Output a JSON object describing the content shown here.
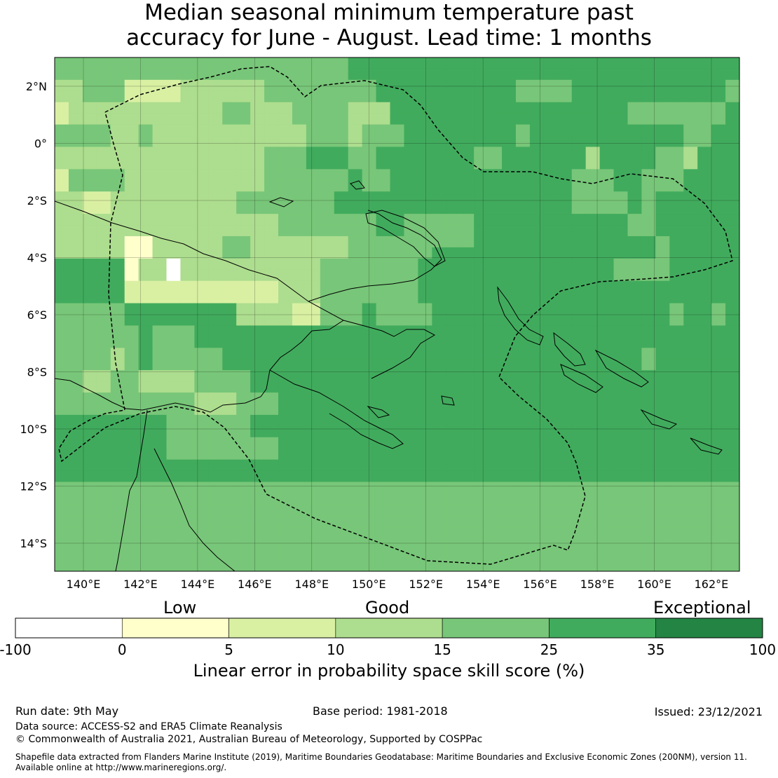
{
  "title": {
    "line1": "Median seasonal minimum temperature past",
    "line2": "accuracy for June - August. Lead time: 1 months"
  },
  "map": {
    "lon_ticks": [
      "140°E",
      "142°E",
      "144°E",
      "146°E",
      "148°E",
      "150°E",
      "152°E",
      "154°E",
      "156°E",
      "158°E",
      "160°E",
      "162°E"
    ],
    "lat_ticks": [
      "2°N",
      "0°",
      "2°S",
      "4°S",
      "6°S",
      "8°S",
      "10°S",
      "12°S",
      "14°S"
    ],
    "grid_rows": [
      "4444444444444444444445555555555555555555555555555",
      "4444444444444444444445555555555555555555555555555",
      "3344422223333334444444455555555554444555555555554",
      "3344422223333334444444455555555554444555555555554",
      "2333333333334433344443335555555555555555544444445",
      "2333333333334433344443335555555555555555544444445",
      "4444334333333333334443444555555554555555555554455",
      "4444334333333333334443444555555554555555555554455",
      "3333333333333334445554455555554455555535555443555",
      "3333333333333334445554455555554455555535555443555",
      "2444433333333334444445445555555555555444554445555",
      "2444433333333334444445445555555555555444554445555",
      "3322333333333444444455555555555555555444454555555",
      "3322333333333444444455555555555555555444454555555",
      "3333333333333333444444455444445555555555544555555",
      "3333333333333333444444455444445555555555544555555",
      "3333311333334433333334444444445555555555555455555",
      "3333311333334433333334444445555555555555555455555",
      "5555513303333333333444444455555555555555444455555",
      "5555513303333333333444444455555555555555444455555",
      "5555522222222222333444444455555555555555555555555",
      "5555522222222222333444444455555555555555555555555",
      "4444455555555333322444544445555555555555555545545",
      "4444455555555333322444544445555555555555555545545",
      "4444445444555555555555555555555555555555555555555",
      "4444445444555555555555555555555555555555555555555",
      "4444345444445555555555555555555555555555554555555",
      "4444345444445555555555555555555555555555554555555",
      "4433443333444455555555555555555555555555555555555",
      "4433443333444455555555555555555555555555555555555",
      "4444444444333444555555555555555555555555555555555",
      "4444444444333444555555555555555555555555555555555",
      "5555555544444455555555555555555555555555555555555",
      "5555555544444455555555555555555555555555555555555",
      "5555555544444444555555555555555555555555555555555",
      "5555555544444444555555555555555555555555555555555",
      "5555555555555555555555555555555555555555555555555",
      "5555555555555555555555555555555555555555555555555",
      "4444444444444444444444444444444444444444444444444",
      "4444444444444444444444444444444444444444444444444",
      "4444444444444444444444444444444444444444444444444",
      "4444444444444444444444444444444444444444444444444",
      "4444444444444444444444444444444444444444444444444",
      "4444444444444444444444444444444444444444444444444",
      "4444444444444444444444444444444444444444444444444",
      "4444444444444444444444444444444444444444444444444"
    ]
  },
  "colorbar": {
    "categories": [
      "Low",
      "Good",
      "Exceptional"
    ],
    "bins": [
      {
        "label": "-100",
        "color": "#ffffff"
      },
      {
        "label": "0",
        "color": "#ffffcc"
      },
      {
        "label": "5",
        "color": "#d9f0a3"
      },
      {
        "label": "10",
        "color": "#addd8e"
      },
      {
        "label": "15",
        "color": "#78c679"
      },
      {
        "label": "25",
        "color": "#41ab5d"
      },
      {
        "label": "35",
        "color": "#238443"
      }
    ],
    "last_tick": "100",
    "label": "Linear error in probability space skill score (%)"
  },
  "footer": {
    "run_date": "Run date: 9th May",
    "base_period": "Base period: 1981-2018",
    "issued": "Issued: 23/12/2021",
    "data_source": "Data source: ACCESS-S2 and ERA5 Climate Reanalysis",
    "copyright": "© Commonwealth of Australia 2021, Australian Bureau of Meteorology, Supported by COSPPac",
    "shapefile_line1": "Shapefile data extracted from Flanders Marine Institute (2019), Maritime Boundaries Geodatabase: Maritime Boundaries and Exclusive Economic Zones (200NM), version 11.",
    "shapefile_line2": "Available online at http://www.marineregions.org/."
  }
}
